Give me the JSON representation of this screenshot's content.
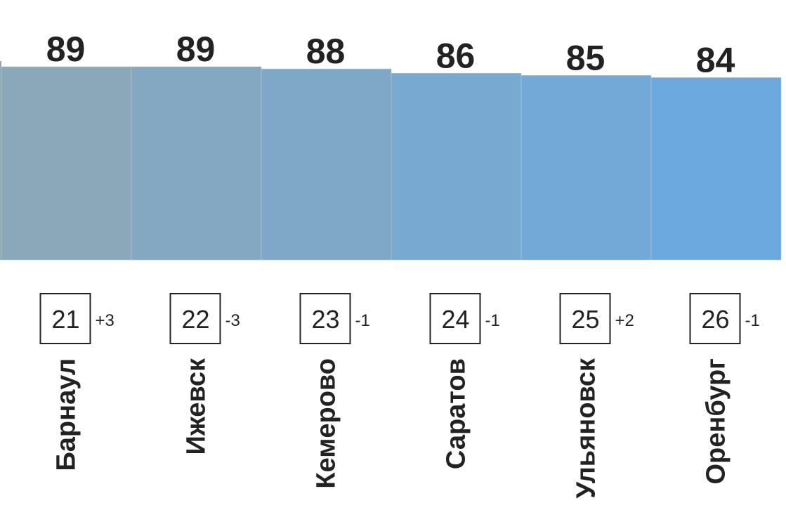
{
  "chart_data": {
    "type": "bar",
    "categories": [
      "Барнаул",
      "Ижевск",
      "Кемерово",
      "Саратов",
      "Ульяновск",
      "Оренбург"
    ],
    "values": [
      89,
      89,
      88,
      86,
      85,
      84
    ],
    "ranks": [
      "21",
      "22",
      "23",
      "24",
      "25",
      "26"
    ],
    "rank_changes": [
      "+3",
      "-3",
      "-1",
      "-1",
      "+2",
      "-1"
    ],
    "colors": [
      "#8aa8b9",
      "#84a8c1",
      "#7fa8c8",
      "#78a9d0",
      "#72a9d7",
      "#6ca9de"
    ],
    "grid": false,
    "legend": "none"
  }
}
